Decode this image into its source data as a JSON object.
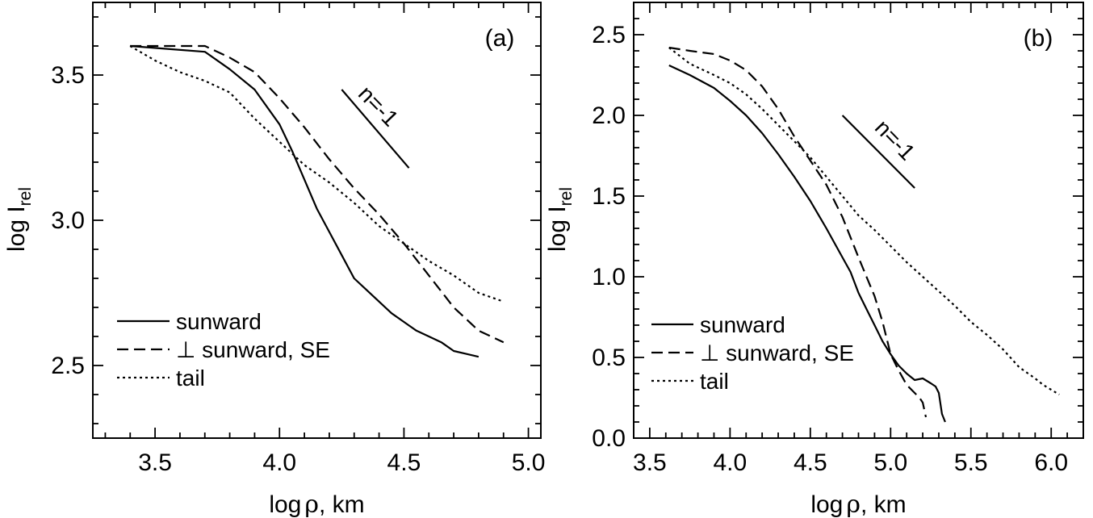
{
  "chart_data": [
    {
      "type": "line",
      "panel_label": "(a)",
      "xlabel_pre": "log",
      "xlabel_sym": "ρ",
      "xlabel_post": ", km",
      "ylabel_main": "log I",
      "ylabel_sub": "rel",
      "xlim": [
        3.25,
        5.05
      ],
      "ylim": [
        2.25,
        3.75
      ],
      "xticks": [
        "3.5",
        "4.0",
        "4.5",
        "5.0"
      ],
      "yticks": [
        "2.5",
        "3.0",
        "3.5"
      ],
      "xtick_values": [
        3.5,
        4.0,
        4.5,
        5.0
      ],
      "ytick_values": [
        2.5,
        3.0,
        3.5
      ],
      "slope_annotation": {
        "label": "n=-1",
        "x": [
          4.25,
          4.52
        ],
        "y": [
          3.45,
          3.18
        ]
      },
      "legend_position": "bottom-left",
      "series": [
        {
          "name": "sunward",
          "style": "solid",
          "x": [
            3.4,
            3.55,
            3.7,
            3.8,
            3.9,
            4.0,
            4.05,
            4.1,
            4.15,
            4.2,
            4.25,
            4.3,
            4.35,
            4.4,
            4.45,
            4.5,
            4.55,
            4.6,
            4.65,
            4.7,
            4.75,
            4.8
          ],
          "y": [
            3.6,
            3.59,
            3.58,
            3.52,
            3.45,
            3.33,
            3.24,
            3.14,
            3.04,
            2.96,
            2.88,
            2.8,
            2.76,
            2.72,
            2.68,
            2.65,
            2.62,
            2.6,
            2.58,
            2.55,
            2.54,
            2.53
          ]
        },
        {
          "name": "⊥ sunward, SE",
          "style": "dashed",
          "x": [
            3.4,
            3.55,
            3.7,
            3.8,
            3.9,
            4.0,
            4.1,
            4.2,
            4.3,
            4.4,
            4.5,
            4.6,
            4.7,
            4.8,
            4.9
          ],
          "y": [
            3.6,
            3.6,
            3.6,
            3.56,
            3.51,
            3.42,
            3.32,
            3.21,
            3.11,
            3.02,
            2.92,
            2.81,
            2.7,
            2.62,
            2.58
          ]
        },
        {
          "name": "tail",
          "style": "dotted",
          "x": [
            3.4,
            3.5,
            3.6,
            3.7,
            3.8,
            3.9,
            4.0,
            4.1,
            4.2,
            4.3,
            4.4,
            4.5,
            4.6,
            4.7,
            4.8,
            4.9
          ],
          "y": [
            3.6,
            3.55,
            3.51,
            3.48,
            3.44,
            3.35,
            3.27,
            3.19,
            3.13,
            3.06,
            2.98,
            2.92,
            2.86,
            2.81,
            2.75,
            2.72
          ]
        }
      ]
    },
    {
      "type": "line",
      "panel_label": "(b)",
      "xlabel_pre": "log",
      "xlabel_sym": "ρ",
      "xlabel_post": ", km",
      "ylabel_main": "log I",
      "ylabel_sub": "rel",
      "xlim": [
        3.4,
        6.2
      ],
      "ylim": [
        0.0,
        2.7
      ],
      "xticks": [
        "3.5",
        "4.0",
        "4.5",
        "5.0",
        "5.5",
        "6.0"
      ],
      "yticks": [
        "0.0",
        "0.5",
        "1.0",
        "1.5",
        "2.0",
        "2.5"
      ],
      "xtick_values": [
        3.5,
        4.0,
        4.5,
        5.0,
        5.5,
        6.0
      ],
      "ytick_values": [
        0.0,
        0.5,
        1.0,
        1.5,
        2.0,
        2.5
      ],
      "slope_annotation": {
        "label": "n=-1",
        "x": [
          4.7,
          5.15
        ],
        "y": [
          2.0,
          1.55
        ]
      },
      "legend_position": "bottom-left",
      "series": [
        {
          "name": "sunward",
          "style": "solid",
          "x": [
            3.62,
            3.75,
            3.9,
            4.0,
            4.1,
            4.2,
            4.3,
            4.4,
            4.5,
            4.6,
            4.7,
            4.75,
            4.8,
            4.85,
            4.9,
            4.95,
            5.0,
            5.05,
            5.1,
            5.15,
            5.2,
            5.25,
            5.28,
            5.3,
            5.32,
            5.34
          ],
          "y": [
            2.31,
            2.25,
            2.17,
            2.09,
            2.0,
            1.89,
            1.76,
            1.62,
            1.47,
            1.3,
            1.12,
            1.03,
            0.9,
            0.8,
            0.7,
            0.6,
            0.52,
            0.45,
            0.4,
            0.36,
            0.37,
            0.34,
            0.32,
            0.28,
            0.15,
            0.1
          ]
        },
        {
          "name": "⊥ sunward, SE",
          "style": "dashed",
          "x": [
            3.62,
            3.75,
            3.9,
            4.0,
            4.1,
            4.2,
            4.3,
            4.4,
            4.5,
            4.6,
            4.7,
            4.8,
            4.85,
            4.9,
            4.95,
            5.0,
            5.05,
            5.1,
            5.15,
            5.18,
            5.2,
            5.22
          ],
          "y": [
            2.42,
            2.4,
            2.38,
            2.34,
            2.28,
            2.18,
            2.04,
            1.87,
            1.72,
            1.57,
            1.37,
            1.12,
            1.0,
            0.88,
            0.72,
            0.52,
            0.42,
            0.33,
            0.28,
            0.25,
            0.22,
            0.13
          ]
        },
        {
          "name": "tail",
          "style": "dotted",
          "x": [
            3.62,
            3.75,
            3.9,
            4.0,
            4.1,
            4.2,
            4.3,
            4.4,
            4.5,
            4.6,
            4.7,
            4.8,
            4.9,
            5.0,
            5.1,
            5.2,
            5.3,
            5.4,
            5.5,
            5.6,
            5.7,
            5.8,
            5.9,
            5.95,
            6.0,
            6.05
          ],
          "y": [
            2.42,
            2.32,
            2.25,
            2.2,
            2.13,
            2.04,
            1.94,
            1.84,
            1.74,
            1.62,
            1.5,
            1.38,
            1.29,
            1.19,
            1.09,
            1.0,
            0.91,
            0.82,
            0.72,
            0.64,
            0.55,
            0.44,
            0.37,
            0.33,
            0.3,
            0.27
          ]
        }
      ]
    }
  ]
}
